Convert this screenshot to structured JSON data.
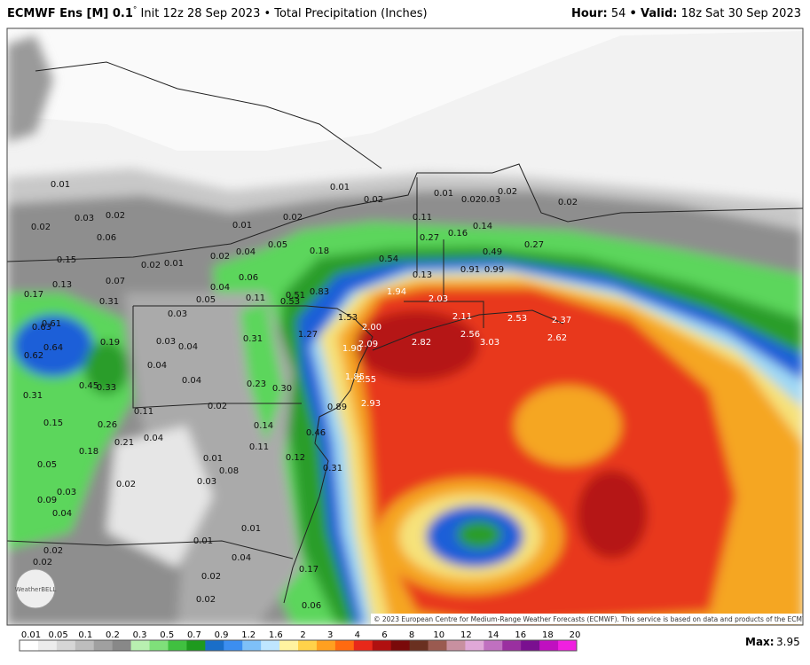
{
  "header": {
    "model": "ECMWF Ens [M] 0.1",
    "degree": "°",
    "init": "Init 12z 28 Sep 2023",
    "separator": "•",
    "field": "Total Precipitation (Inches)",
    "hour_label": "Hour:",
    "hour": "54",
    "valid_label": "Valid:",
    "valid": "18z Sat 30 Sep 2023"
  },
  "map": {
    "labels": [
      "0.01",
      "0.03",
      "0.02",
      "0.02",
      "0.06",
      "0.15",
      "0.13",
      "0.17",
      "0.07",
      "0.31",
      "0.02",
      "0.01",
      "0.02",
      "0.04",
      "0.01",
      "0.02",
      "0.05",
      "0.01",
      "0.02",
      "0.01",
      "0.02",
      "0.03",
      "0.02",
      "0.02",
      "0.11",
      "0.27",
      "0.16",
      "0.14",
      "0.49",
      "0.27",
      "0.18",
      "0.54",
      "0.13",
      "0.91",
      "0.99",
      "0.04",
      "0.06",
      "0.05",
      "0.11",
      "0.51",
      "0.53",
      "0.83",
      "1.94",
      "2.03",
      "1.53",
      "2.00",
      "2.11",
      "2.53",
      "2.37",
      "0.61",
      "0.63",
      "0.64",
      "0.62",
      "0.19",
      "0.03",
      "0.03",
      "0.04",
      "1.27",
      "1.90",
      "2.09",
      "2.82",
      "2.56",
      "3.03",
      "2.62",
      "0.31",
      "0.04",
      "0.04",
      "0.45",
      "0.33",
      "0.23",
      "0.30",
      "1.85",
      "2.55",
      "0.31",
      "0.89",
      "2.93",
      "0.02",
      "0.11",
      "0.15",
      "0.26",
      "0.14",
      "0.04",
      "0.21",
      "0.18",
      "0.46",
      "0.11",
      "0.12",
      "0.01",
      "0.08",
      "0.31",
      "0.05",
      "0.02",
      "0.03",
      "0.03",
      "0.09",
      "0.04",
      "0.01",
      "0.01",
      "0.02",
      "0.02",
      "0.04",
      "0.17",
      "0.02",
      "0.02",
      "0.06"
    ],
    "copyright": "© 2023 European Centre for Medium-Range Weather Forecasts (ECMWF). This service is based on data and products of the ECMWF.",
    "logo": "WeatherBELL"
  },
  "colorbar": {
    "ticks": [
      0.01,
      0.05,
      0.1,
      0.2,
      0.3,
      0.5,
      0.7,
      0.9,
      1.2,
      1.6,
      2,
      3,
      4,
      6,
      8,
      10,
      12,
      14,
      16,
      18,
      20
    ],
    "max_label": "Max:",
    "max": 3.95
  }
}
